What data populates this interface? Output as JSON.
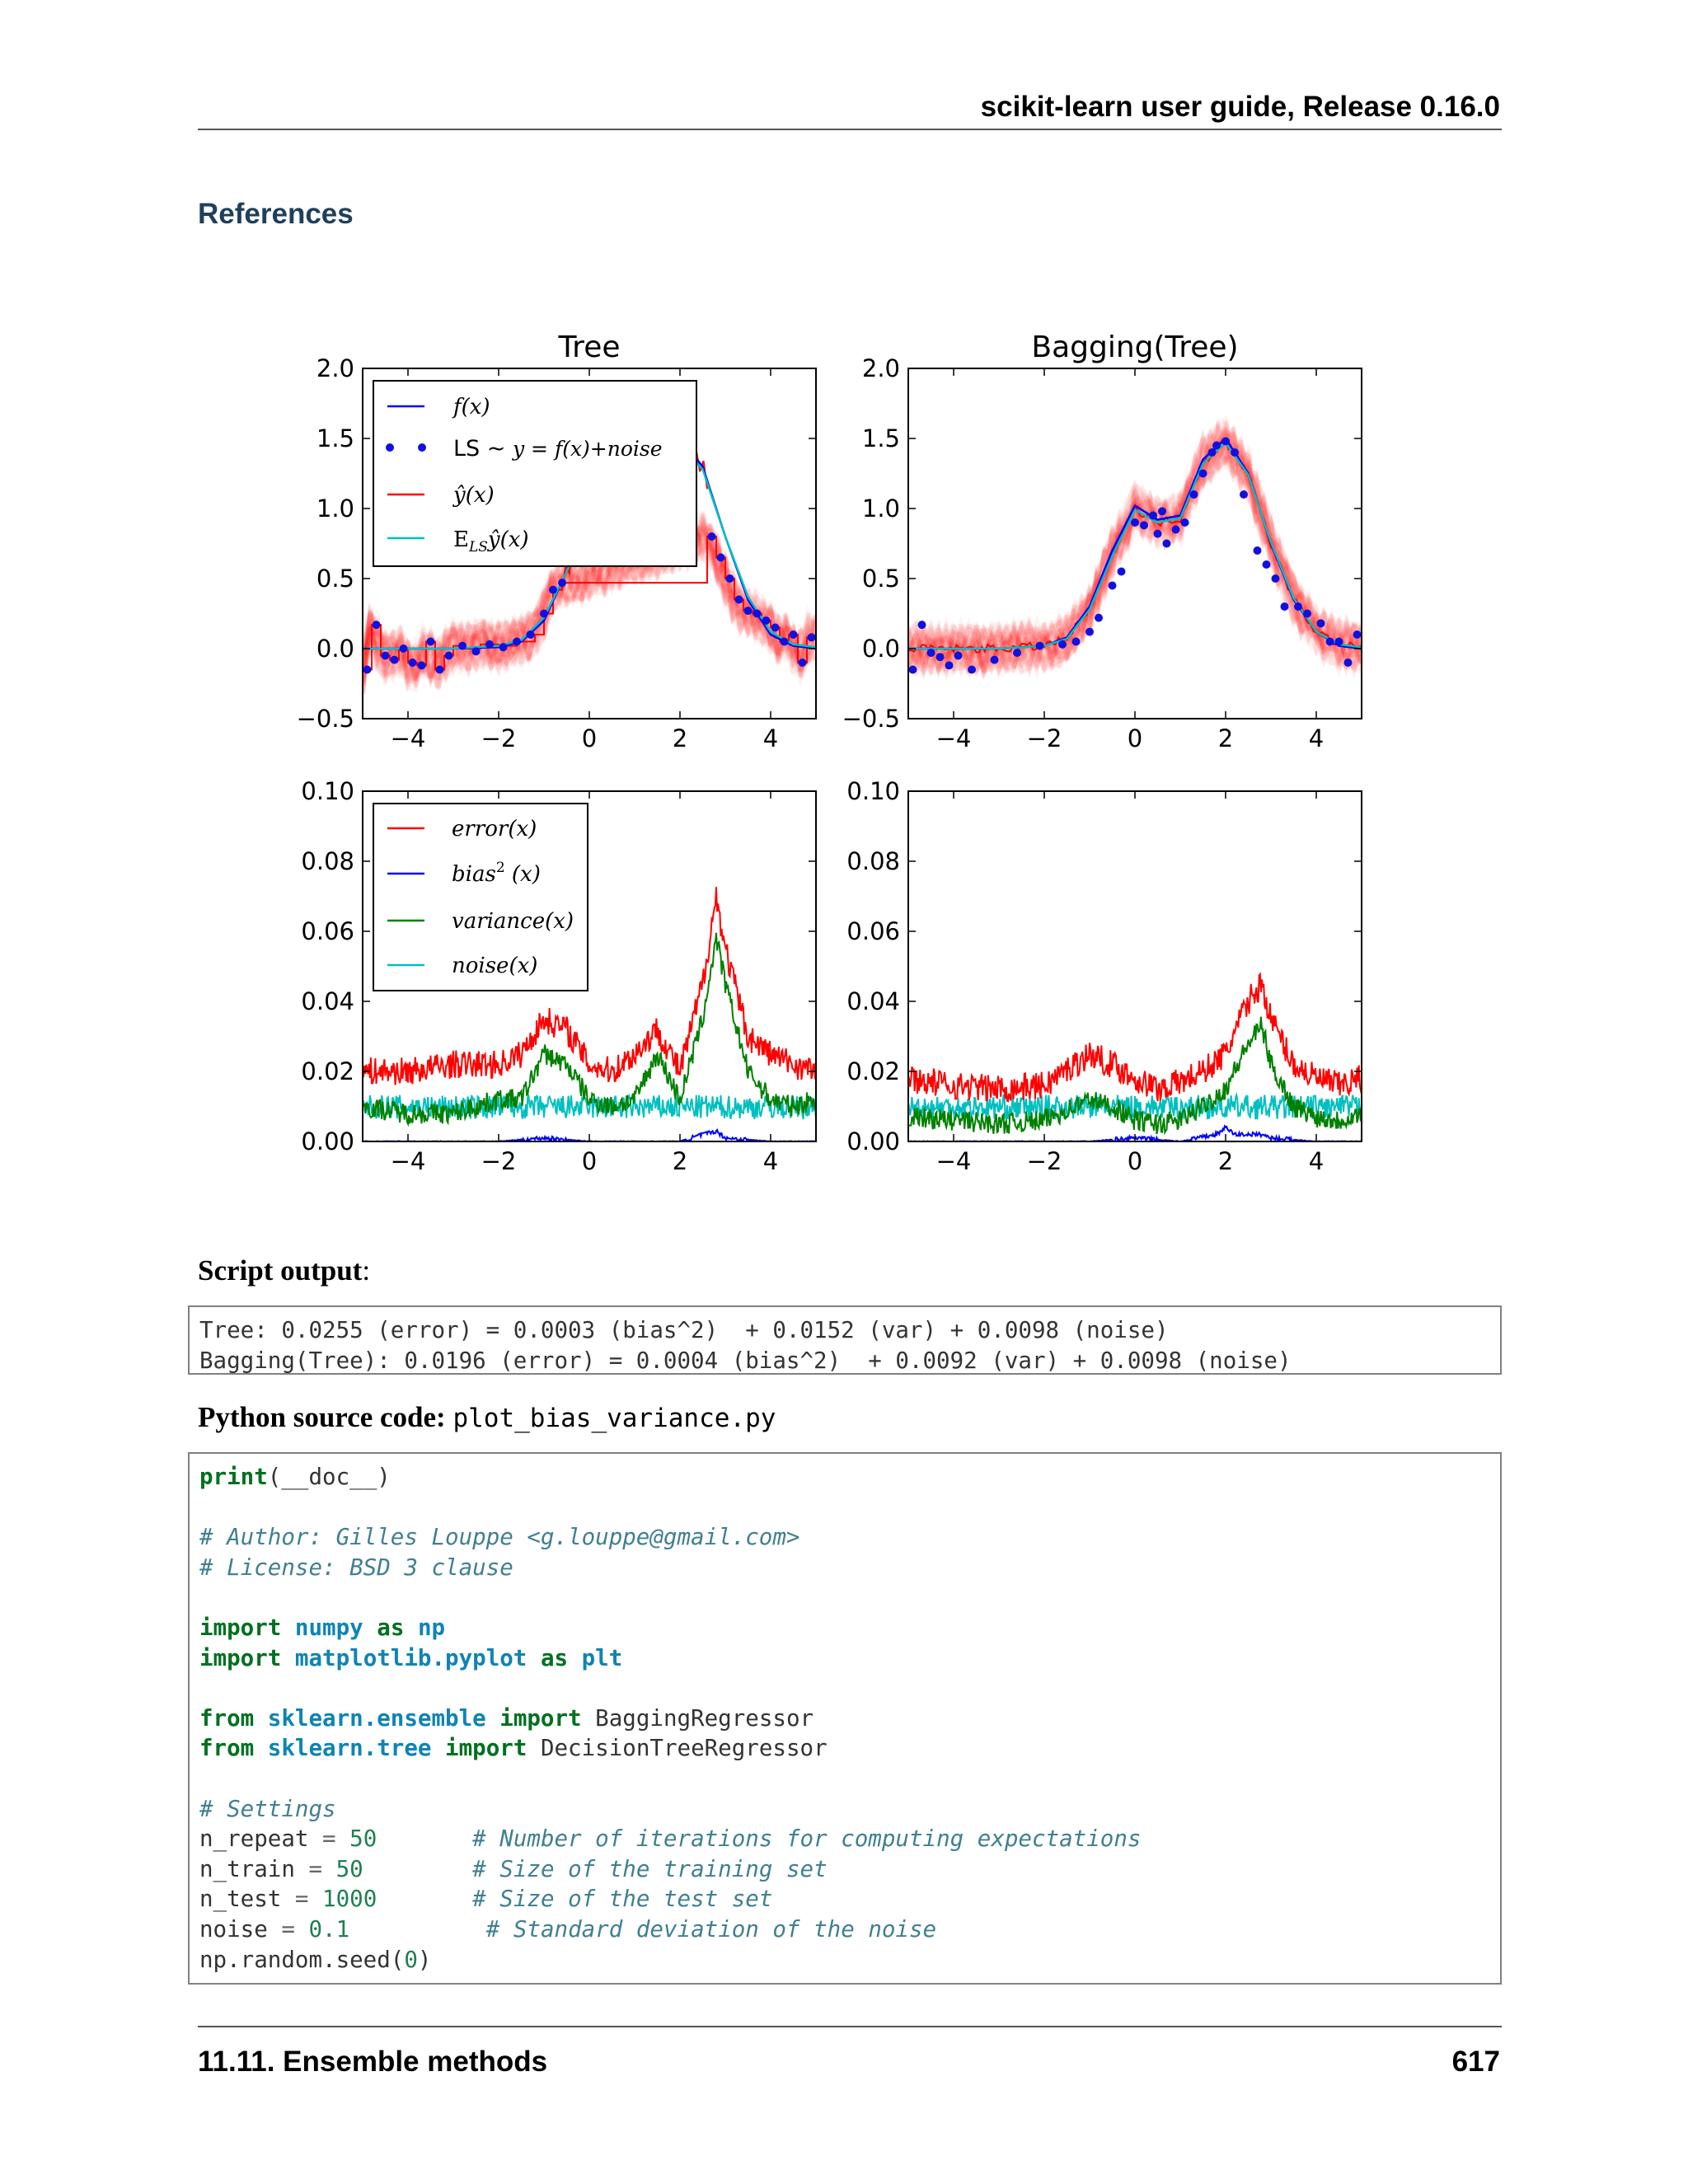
{
  "header": {
    "title": "scikit-learn user guide, Release 0.16.0"
  },
  "section": {
    "title": "References"
  },
  "figure": {
    "panels": [
      {
        "title": "Tree",
        "yticks": [
          "2.0",
          "1.5",
          "1.0",
          "0.5",
          "0.0",
          "−0.5"
        ],
        "xticks": [
          "−4",
          "−2",
          "0",
          "2",
          "4"
        ],
        "legend": [
          "f(x)",
          "LS ~ y = f(x)+noise",
          "ŷ(x)",
          "E_LS ŷ(x)"
        ]
      },
      {
        "title": "Bagging(Tree)",
        "yticks": [
          "2.0",
          "1.5",
          "1.0",
          "0.5",
          "0.0",
          "−0.5"
        ],
        "xticks": [
          "−4",
          "−2",
          "0",
          "2",
          "4"
        ]
      },
      {
        "title": "",
        "yticks": [
          "0.10",
          "0.08",
          "0.06",
          "0.04",
          "0.02",
          "0.00"
        ],
        "xticks": [
          "−4",
          "−2",
          "0",
          "2",
          "4"
        ],
        "legend": [
          "error(x)",
          "bias² (x)",
          "variance(x)",
          "noise(x)"
        ]
      },
      {
        "title": "",
        "yticks": [
          "0.10",
          "0.08",
          "0.06",
          "0.04",
          "0.02",
          "0.00"
        ],
        "xticks": [
          "−4",
          "−2",
          "0",
          "2",
          "4"
        ]
      }
    ],
    "legend_math": {
      "fx": "f(x)",
      "ls_prefix": "LS ~ ",
      "ls_eq": "y = f(x)+noise",
      "yhat": "ŷ(x)",
      "ey_main": "E",
      "ey_sub": "LS",
      "ey_rest": "ŷ(x)",
      "error": "error(x)",
      "bias": "bias",
      "bias_sup": "2",
      "bias_rest": " (x)",
      "variance": "variance(x)",
      "noise": "noise(x)"
    },
    "colors": {
      "f": "#0000ff",
      "points": "#1010e0",
      "yhat": "#ff0000",
      "mean": "#00bfbf",
      "variance": "#008000"
    }
  },
  "chart_data": [
    {
      "type": "line",
      "title": "Tree",
      "xlim": [
        -5,
        5
      ],
      "ylim": [
        -0.5,
        2.0
      ],
      "series": [
        {
          "name": "f(x)",
          "x": [
            -5,
            -4,
            -3,
            -2,
            -1.5,
            -1,
            -0.5,
            0,
            0.5,
            1,
            1.5,
            2,
            2.5,
            3,
            3.5,
            4,
            4.5,
            5
          ],
          "values": [
            0,
            0,
            0,
            0.01,
            0.05,
            0.2,
            0.55,
            0.95,
            1.2,
            1.3,
            1.45,
            1.5,
            1.3,
            0.8,
            0.35,
            0.1,
            0.02,
            0
          ]
        },
        {
          "name": "LS ~ y = f(x)+noise",
          "x": [
            -4.9,
            -4.7,
            -4.5,
            -4.3,
            -4.1,
            -3.9,
            -3.7,
            -3.5,
            -3.3,
            -3.1,
            -2.8,
            -2.5,
            -2.2,
            -1.9,
            -1.6,
            -1.3,
            -1.0,
            -0.8,
            -0.6,
            2.7,
            2.9,
            3.1,
            3.3,
            3.5,
            3.7,
            3.9,
            4.1,
            4.3,
            4.5,
            4.7,
            4.9
          ],
          "values": [
            -0.15,
            0.17,
            -0.05,
            -0.08,
            0.0,
            -0.1,
            -0.12,
            0.05,
            -0.15,
            -0.05,
            0.02,
            -0.02,
            0.03,
            0.01,
            0.05,
            0.1,
            0.25,
            0.42,
            0.47,
            0.8,
            0.65,
            0.5,
            0.35,
            0.27,
            0.25,
            0.2,
            0.15,
            0.05,
            0.1,
            -0.1,
            0.08
          ]
        },
        {
          "name": "ŷ(x)",
          "x": [
            -5,
            -4.8,
            -4.6,
            -4.4,
            -4.2,
            -4,
            -3.8,
            -3.6,
            -3.4,
            -3.2,
            -3,
            -2.8,
            -2.4,
            -2,
            -1.6,
            -1.2,
            -1,
            -0.8,
            -0.6,
            2.6,
            2.8,
            3,
            3.2,
            3.4,
            3.6,
            3.8,
            4,
            4.2,
            4.4,
            4.6,
            4.8,
            5
          ],
          "values": [
            -0.15,
            0.17,
            -0.05,
            -0.08,
            0,
            -0.1,
            -0.12,
            0.05,
            -0.15,
            -0.05,
            0.02,
            0,
            0.03,
            0.02,
            0.05,
            0.1,
            0.25,
            0.42,
            0.47,
            0.8,
            0.65,
            0.5,
            0.35,
            0.27,
            0.25,
            0.2,
            0.15,
            0.05,
            0.1,
            -0.1,
            0.08,
            0.08
          ]
        },
        {
          "name": "E_LS ŷ(x)",
          "x": [
            -5,
            -4,
            -3,
            -2,
            -1.5,
            -1,
            -0.5,
            0,
            0.5,
            1,
            1.5,
            2,
            2.5,
            3,
            3.5,
            4,
            4.5,
            5
          ],
          "values": [
            0,
            0,
            0,
            0.02,
            0.06,
            0.22,
            0.55,
            0.93,
            1.18,
            1.28,
            1.42,
            1.45,
            1.28,
            0.8,
            0.37,
            0.12,
            0.03,
            0.01
          ]
        }
      ]
    },
    {
      "type": "line",
      "title": "Bagging(Tree)",
      "xlim": [
        -5,
        5
      ],
      "ylim": [
        -0.5,
        2.0
      ],
      "series": [
        {
          "x": [
            -5,
            -4,
            -3,
            -2,
            -1.5,
            -1,
            -0.5,
            0,
            0.5,
            1,
            1.5,
            2,
            2.5,
            3,
            3.5,
            4,
            4.5,
            5
          ],
          "values": [
            0,
            0,
            0,
            0.02,
            0.08,
            0.3,
            0.7,
            1.02,
            0.92,
            0.95,
            1.35,
            1.5,
            1.25,
            0.75,
            0.35,
            0.12,
            0.02,
            0
          ]
        },
        {
          "x": [
            -4.9,
            -4.7,
            -4.5,
            -4.3,
            -4.1,
            -3.9,
            -3.6,
            -3.1,
            -2.6,
            -2.1,
            -1.6,
            -1.3,
            -1.0,
            -0.8,
            -0.5,
            -0.3,
            0.0,
            0.2,
            0.4,
            0.5,
            0.6,
            0.7,
            0.9,
            1.1,
            1.3,
            1.5,
            1.7,
            1.8,
            2.0,
            2.2,
            2.4,
            2.7,
            2.9,
            3.1,
            3.3,
            3.6,
            3.8,
            4.1,
            4.3,
            4.5,
            4.7,
            4.9
          ],
          "values": [
            -0.15,
            0.17,
            -0.03,
            -0.06,
            -0.12,
            -0.05,
            -0.15,
            -0.08,
            -0.03,
            0.02,
            0.03,
            0.05,
            0.12,
            0.22,
            0.45,
            0.55,
            0.9,
            0.88,
            0.95,
            0.82,
            0.98,
            0.75,
            0.85,
            0.9,
            1.1,
            1.25,
            1.4,
            1.45,
            1.48,
            1.4,
            1.1,
            0.7,
            0.6,
            0.5,
            0.3,
            0.3,
            0.25,
            0.18,
            0.05,
            0.05,
            -0.1,
            0.1
          ]
        },
        {
          "x": [
            -5,
            -4,
            -3,
            -2,
            -1.5,
            -1,
            -0.5,
            0,
            0.5,
            1,
            1.5,
            2,
            2.5,
            3,
            3.5,
            4,
            4.5,
            5
          ],
          "values": [
            0,
            0,
            0,
            0.02,
            0.07,
            0.28,
            0.68,
            1.0,
            0.9,
            0.93,
            1.33,
            1.48,
            1.25,
            0.75,
            0.35,
            0.12,
            0.03,
            0
          ]
        },
        {
          "x": [
            -5,
            -4,
            -3,
            -2,
            -1.5,
            -1,
            -0.5,
            0,
            0.5,
            1,
            1.5,
            2,
            2.5,
            3,
            3.5,
            4,
            4.5,
            5
          ],
          "values": [
            0,
            0,
            0,
            0.02,
            0.07,
            0.28,
            0.66,
            0.99,
            0.9,
            0.93,
            1.32,
            1.47,
            1.24,
            0.76,
            0.36,
            0.12,
            0.03,
            0.01
          ]
        }
      ]
    },
    {
      "type": "line",
      "xlim": [
        -5,
        5
      ],
      "ylim": [
        0,
        0.1
      ],
      "series": [
        {
          "name": "error(x)",
          "x": [
            -5,
            -4,
            -3,
            -2,
            -1.5,
            -1,
            -0.5,
            0,
            0.5,
            1,
            1.5,
            2,
            2.5,
            2.8,
            3,
            3.5,
            4,
            4.5,
            5
          ],
          "values": [
            0.02,
            0.02,
            0.022,
            0.022,
            0.025,
            0.035,
            0.032,
            0.022,
            0.02,
            0.025,
            0.032,
            0.02,
            0.045,
            0.07,
            0.055,
            0.03,
            0.025,
            0.022,
            0.02
          ]
        },
        {
          "name": "bias² (x)",
          "x": [
            -5,
            -4,
            -3,
            -2,
            -1,
            0,
            1,
            2,
            2.5,
            2.8,
            3,
            4,
            5
          ],
          "values": [
            0,
            0,
            0,
            0,
            0.001,
            0,
            0,
            0,
            0.002,
            0.003,
            0.001,
            0,
            0
          ]
        },
        {
          "name": "variance(x)",
          "x": [
            -5,
            -4,
            -3,
            -2,
            -1.5,
            -1,
            -0.5,
            0,
            0.5,
            1,
            1.5,
            2,
            2.5,
            2.8,
            3,
            3.5,
            4,
            4.5,
            5
          ],
          "values": [
            0.01,
            0.008,
            0.008,
            0.012,
            0.012,
            0.025,
            0.022,
            0.012,
            0.01,
            0.012,
            0.025,
            0.012,
            0.035,
            0.058,
            0.045,
            0.02,
            0.012,
            0.01,
            0.012
          ]
        },
        {
          "name": "noise(x)",
          "x": [
            -5,
            5
          ],
          "values": [
            0.0098,
            0.0098
          ]
        }
      ]
    },
    {
      "type": "line",
      "xlim": [
        -5,
        5
      ],
      "ylim": [
        0,
        0.1
      ],
      "series": [
        {
          "x": [
            -5,
            -4,
            -3,
            -2,
            -1,
            -0.5,
            0,
            0.5,
            1,
            1.5,
            2,
            2.5,
            2.8,
            3,
            3.5,
            4,
            4.5,
            5
          ],
          "values": [
            0.018,
            0.016,
            0.015,
            0.016,
            0.025,
            0.022,
            0.018,
            0.015,
            0.017,
            0.02,
            0.025,
            0.04,
            0.045,
            0.035,
            0.022,
            0.018,
            0.016,
            0.018
          ]
        },
        {
          "x": [
            -5,
            -3,
            -1,
            0,
            1,
            1.8,
            2,
            2.2,
            2.8,
            3,
            4,
            5
          ],
          "values": [
            0,
            0,
            0,
            0.001,
            0,
            0.002,
            0.004,
            0.002,
            0.002,
            0.001,
            0,
            0
          ]
        },
        {
          "x": [
            -5,
            -4,
            -3,
            -2,
            -1,
            -0.5,
            0,
            0.5,
            1,
            1.5,
            2,
            2.5,
            2.8,
            3,
            3.5,
            4,
            4.5,
            5
          ],
          "values": [
            0.007,
            0.006,
            0.005,
            0.006,
            0.012,
            0.01,
            0.006,
            0.005,
            0.006,
            0.01,
            0.015,
            0.028,
            0.033,
            0.022,
            0.01,
            0.007,
            0.006,
            0.008
          ]
        },
        {
          "x": [
            -5,
            5
          ],
          "values": [
            0.0098,
            0.0098
          ]
        }
      ]
    }
  ],
  "script_output": {
    "label": "Script output",
    "label_suffix": ":",
    "lines": [
      "Tree: 0.0255 (error) = 0.0003 (bias^2)  + 0.0152 (var) + 0.0098 (noise)",
      "Bagging(Tree): 0.0196 (error) = 0.0004 (bias^2)  + 0.0092 (var) + 0.0098 (noise)"
    ]
  },
  "source": {
    "label": "Python source code:",
    "filename": "plot_bias_variance.py",
    "code": {
      "l1_kw": "print",
      "l1_rest": "(__doc__)",
      "l3": "# Author: Gilles Louppe <g.louppe@gmail.com>",
      "l4": "# License: BSD 3 clause",
      "import": "import",
      "as": "as",
      "from": "from",
      "numpy": "numpy",
      "np": "np",
      "matplotlib": "matplotlib.pyplot",
      "plt": "plt",
      "ensemble": "sklearn.ensemble",
      "bagging": " BaggingRegressor",
      "tree": "sklearn.tree",
      "dtr": " DecisionTreeRegressor",
      "settings": "# Settings",
      "n_repeat": "n_repeat",
      "n_repeat_val": "50",
      "n_repeat_cm": "# Number of iterations for computing expectations",
      "n_train": "n_train",
      "n_train_val": "50",
      "n_train_cm": "# Size of the training set",
      "n_test": "n_test",
      "n_test_val": "1000",
      "n_test_cm": "# Size of the test set",
      "noise": "noise",
      "noise_val": "0.1",
      "noise_cm": "# Standard deviation of the noise",
      "seed": "np.random.seed(",
      "seed_val": "0",
      "seed_close": ")"
    }
  },
  "footer": {
    "section": "11.11.  Ensemble methods",
    "page": "617"
  }
}
